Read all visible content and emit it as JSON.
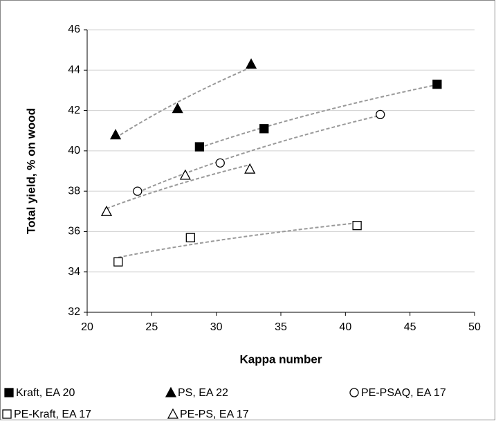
{
  "chart_data": {
    "type": "scatter",
    "x_label": "Kappa number",
    "y_label": "Total yield, % on wood",
    "xlim": [
      20,
      50
    ],
    "xticks": [
      20,
      25,
      30,
      35,
      40,
      45,
      50
    ],
    "ylim": [
      32,
      46
    ],
    "yticks": [
      32,
      34,
      36,
      38,
      40,
      42,
      44,
      46
    ],
    "grid": true,
    "trendline": "logarithmic",
    "legend": "bottom",
    "series": [
      {
        "name": "Kraft, EA 20",
        "color": "#000000",
        "marker": "square",
        "filled": true,
        "x": [
          28.7,
          33.7,
          47.1
        ],
        "values": [
          40.2,
          41.1,
          43.3
        ]
      },
      {
        "name": "PS, EA 22",
        "color": "#000000",
        "marker": "triangle",
        "filled": true,
        "x": [
          22.2,
          27.0,
          32.7
        ],
        "values": [
          40.8,
          42.1,
          44.3
        ]
      },
      {
        "name": "PE-PSAQ, EA 17",
        "color": "#000000",
        "marker": "circle",
        "filled": false,
        "x": [
          23.9,
          30.3,
          42.7
        ],
        "values": [
          38.0,
          39.4,
          41.8
        ]
      },
      {
        "name": "PE-Kraft, EA 17",
        "color": "#000000",
        "marker": "square",
        "filled": false,
        "x": [
          22.4,
          28.0,
          40.9
        ],
        "values": [
          34.5,
          35.7,
          36.3
        ]
      },
      {
        "name": "PE-PS, EA 17",
        "color": "#000000",
        "marker": "triangle",
        "filled": false,
        "x": [
          21.5,
          27.6,
          32.6
        ],
        "values": [
          37.0,
          38.8,
          39.1
        ]
      }
    ]
  }
}
